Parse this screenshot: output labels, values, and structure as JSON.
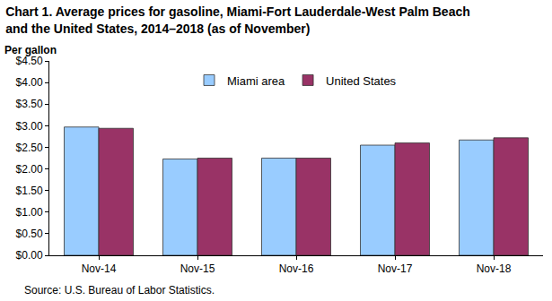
{
  "chart_data": {
    "type": "bar",
    "title": [
      "Chart 1. Average prices for gasoline, Miami-Fort Lauderdale-West Palm Beach",
      "and the United States, 2014–2018 (as of November)"
    ],
    "ylabel": "Per gallon",
    "annotations": [
      "Source: U.S. Bureau of Labor Statistics."
    ],
    "categories": [
      "Nov-14",
      "Nov-15",
      "Nov-16",
      "Nov-17",
      "Nov-18"
    ],
    "series": [
      {
        "name": "Miami area",
        "color": "#99ccff",
        "values": [
          2.97,
          2.23,
          2.25,
          2.55,
          2.67
        ]
      },
      {
        "name": "United States",
        "color": "#993366",
        "values": [
          2.94,
          2.25,
          2.25,
          2.6,
          2.72
        ]
      }
    ],
    "ylim": [
      0,
      4.5
    ],
    "yticks": [
      {
        "value": 0,
        "label": "$0.00"
      },
      {
        "value": 0.5,
        "label": "$0.50"
      },
      {
        "value": 1,
        "label": "$1.00"
      },
      {
        "value": 1.5,
        "label": "$1.50"
      },
      {
        "value": 2,
        "label": "$2.00"
      },
      {
        "value": 2.5,
        "label": "$2.50"
      },
      {
        "value": 3,
        "label": "$3.00"
      },
      {
        "value": 3.5,
        "label": "$3.50"
      },
      {
        "value": 4,
        "label": "$4.00"
      },
      {
        "value": 4.5,
        "label": "$4.50"
      }
    ],
    "grid": false,
    "legend": "top"
  }
}
